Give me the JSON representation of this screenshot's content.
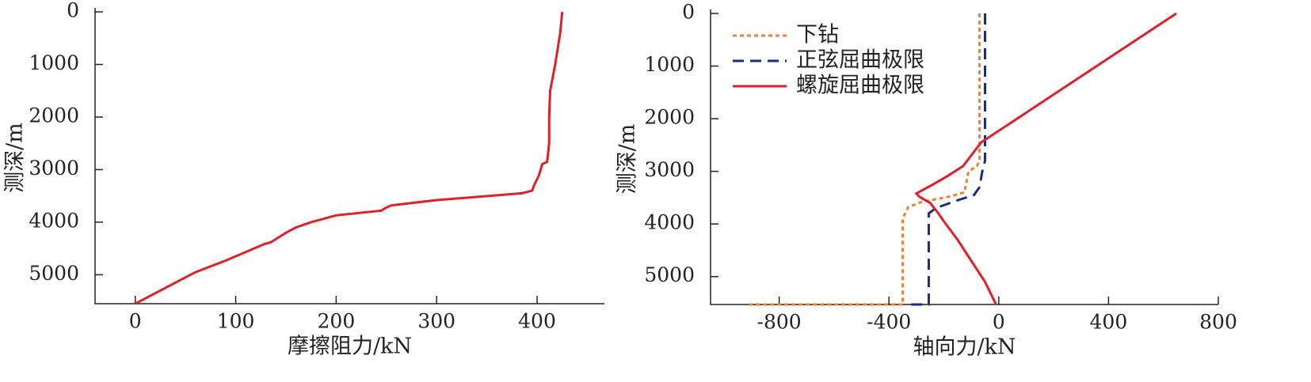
{
  "chart_data": [
    {
      "type": "line",
      "xlabel": "摩擦阻力/kN",
      "ylabel": "测深/m",
      "xlim": [
        -40,
        467
      ],
      "xticks": [
        0,
        100,
        200,
        300,
        400
      ],
      "ylim": [
        0,
        5550
      ],
      "yticks": [
        0,
        1000,
        2000,
        3000,
        4000,
        5000
      ],
      "y_inverted": true,
      "series": [
        {
          "color": "#e02028",
          "linestyle": "solid",
          "x": [
            425,
            423,
            418,
            413,
            412,
            412,
            410,
            405,
            402,
            397,
            395,
            385,
            300,
            255,
            250,
            245,
            200,
            175,
            160,
            150,
            135,
            128,
            90,
            60,
            0
          ],
          "values": [
            0,
            400,
            1000,
            1500,
            2000,
            2500,
            2850,
            2900,
            3100,
            3300,
            3400,
            3450,
            3580,
            3680,
            3720,
            3780,
            3870,
            4000,
            4100,
            4200,
            4380,
            4420,
            4730,
            4950,
            5550
          ]
        }
      ]
    },
    {
      "type": "line",
      "xlabel": "轴向力/kN",
      "ylabel": "测深/m",
      "xlim": [
        -1050,
        800
      ],
      "xticks": [
        -800,
        -400,
        0,
        400,
        800
      ],
      "ylim": [
        0,
        5530
      ],
      "yticks": [
        0,
        1000,
        2000,
        3000,
        4000,
        5000
      ],
      "y_inverted": true,
      "legend": "upper left",
      "series": [
        {
          "name": "下钻",
          "color": "#f07f30",
          "linestyle": "dotted",
          "x": [
            -70,
            -70,
            -80,
            -110,
            -125,
            -180,
            -280,
            -330,
            -350,
            -350,
            -910
          ],
          "values": [
            0,
            2800,
            2900,
            3000,
            3400,
            3480,
            3580,
            3680,
            3900,
            5530,
            5530
          ]
        },
        {
          "name": "正弦屈曲极限",
          "color": "#1f2a80",
          "linestyle": "dashed",
          "x": [
            -50,
            -50,
            -60,
            -70,
            -90,
            -150,
            -230,
            -255,
            -255,
            -340
          ],
          "values": [
            0,
            2800,
            3000,
            3300,
            3450,
            3550,
            3700,
            3800,
            5530,
            5530
          ]
        },
        {
          "name": "螺旋屈曲极限",
          "color": "#e02028",
          "linestyle": "solid",
          "x": [
            647,
            -64,
            -130,
            -190,
            -240,
            -300,
            -290,
            -250,
            -220,
            -200,
            -150,
            -100,
            -50,
            -10
          ],
          "values": [
            0,
            2450,
            2900,
            3100,
            3250,
            3420,
            3480,
            3600,
            3800,
            3950,
            4300,
            4700,
            5100,
            5530
          ]
        }
      ]
    }
  ]
}
